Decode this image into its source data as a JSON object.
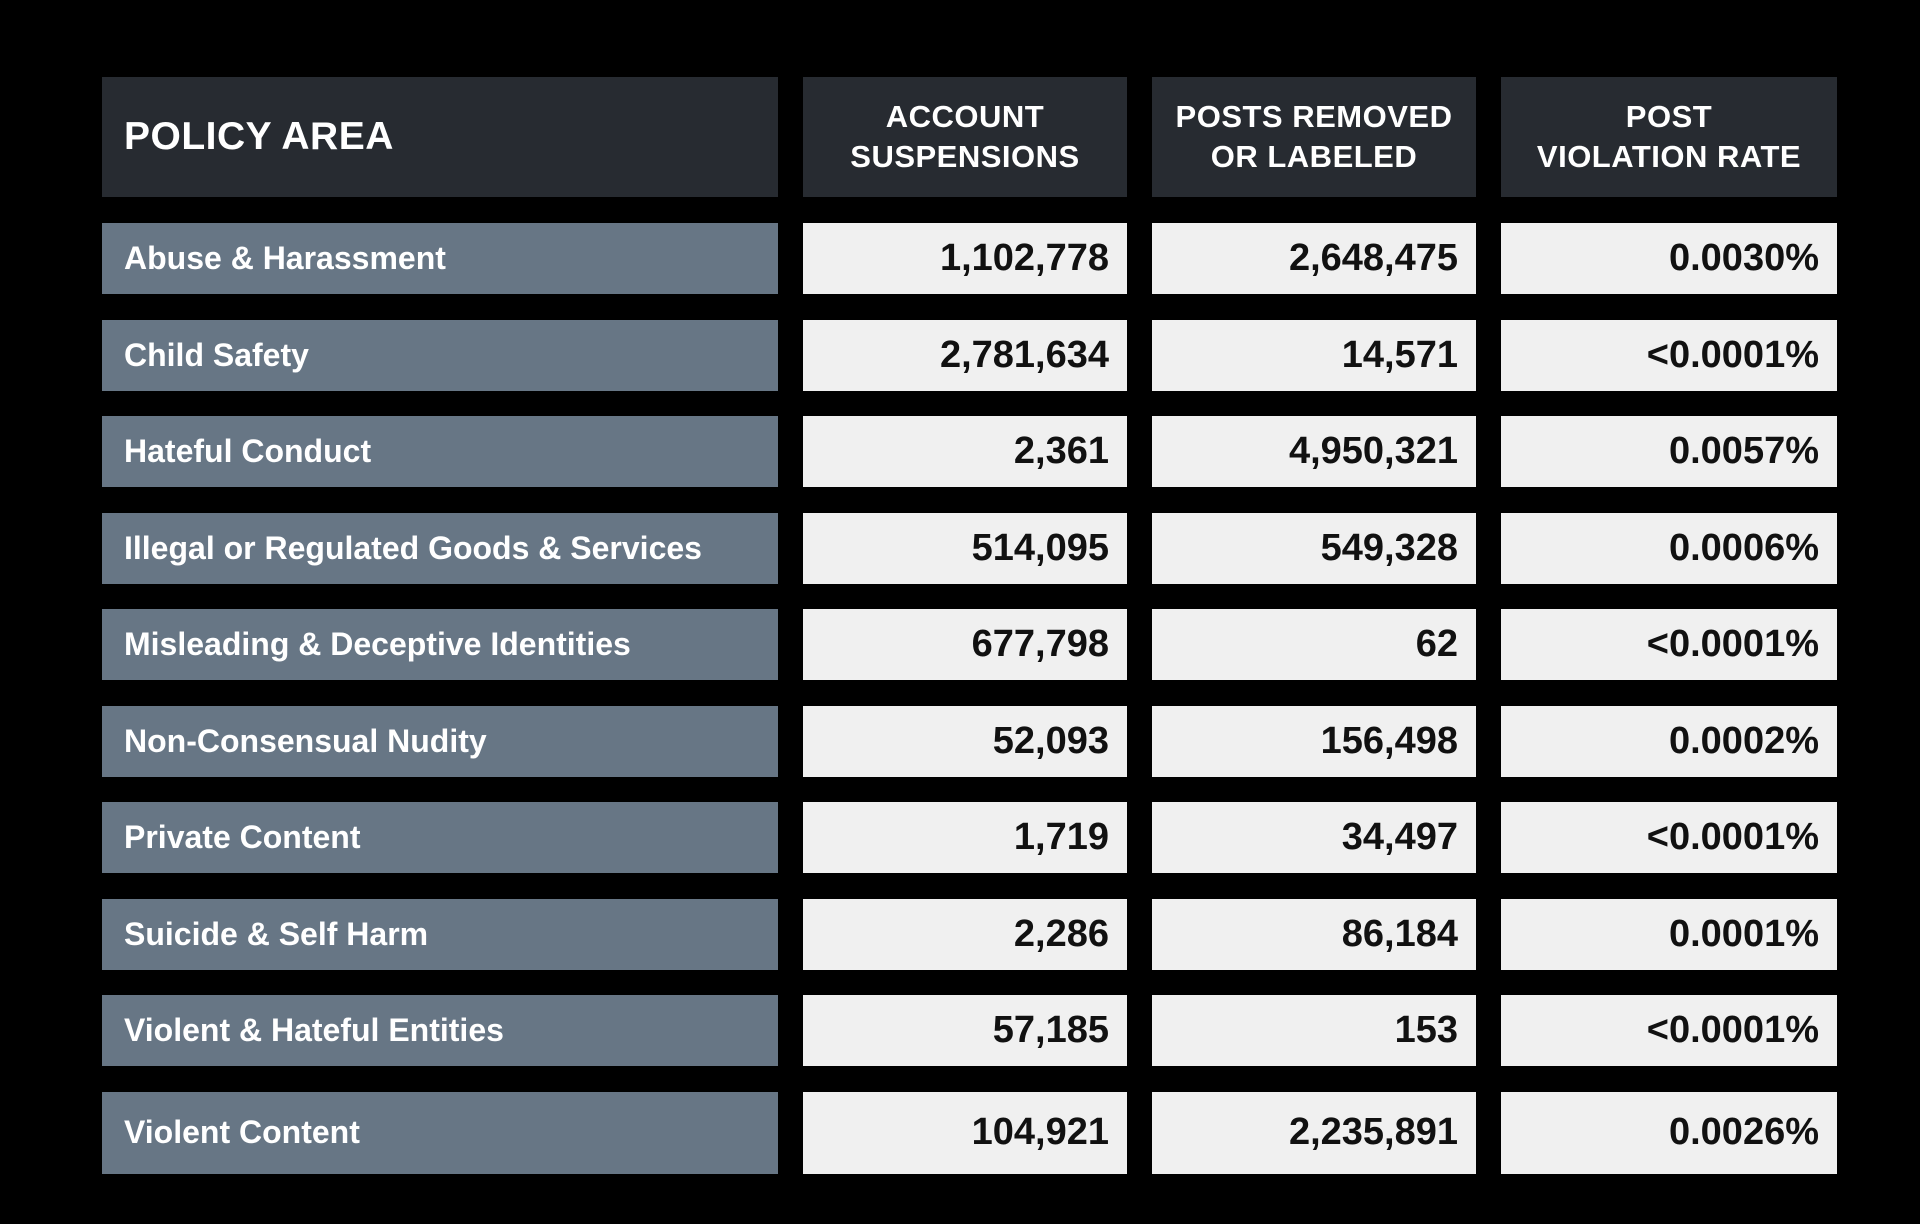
{
  "colors": {
    "header_bg": "#272b31",
    "label_bg": "#677685",
    "value_bg": "#f0f0f0",
    "background": "#000000"
  },
  "headers": [
    "POLICY AREA",
    "ACCOUNT\nSUSPENSIONS",
    "POSTS REMOVED\nOR LABELED",
    "POST\nVIOLATION RATE"
  ],
  "rows": [
    {
      "policy": "Abuse & Harassment",
      "suspensions": "1,102,778",
      "posts": "2,648,475",
      "rate": "0.0030%"
    },
    {
      "policy": "Child Safety",
      "suspensions": "2,781,634",
      "posts": "14,571",
      "rate": "<0.0001%"
    },
    {
      "policy": "Hateful Conduct",
      "suspensions": "2,361",
      "posts": "4,950,321",
      "rate": "0.0057%"
    },
    {
      "policy": "Illegal or Regulated Goods & Services",
      "suspensions": "514,095",
      "posts": "549,328",
      "rate": "0.0006%"
    },
    {
      "policy": "Misleading & Deceptive Identities",
      "suspensions": "677,798",
      "posts": "62",
      "rate": "<0.0001%"
    },
    {
      "policy": "Non-Consensual Nudity",
      "suspensions": "52,093",
      "posts": "156,498",
      "rate": "0.0002%"
    },
    {
      "policy": "Private Content",
      "suspensions": "1,719",
      "posts": "34,497",
      "rate": "<0.0001%"
    },
    {
      "policy": "Suicide & Self Harm",
      "suspensions": "2,286",
      "posts": "86,184",
      "rate": "0.0001%"
    },
    {
      "policy": "Violent & Hateful Entities",
      "suspensions": "57,185",
      "posts": "153",
      "rate": "<0.0001%"
    },
    {
      "policy": "Violent Content",
      "suspensions": "104,921",
      "posts": "2,235,891",
      "rate": "0.0026%"
    }
  ]
}
